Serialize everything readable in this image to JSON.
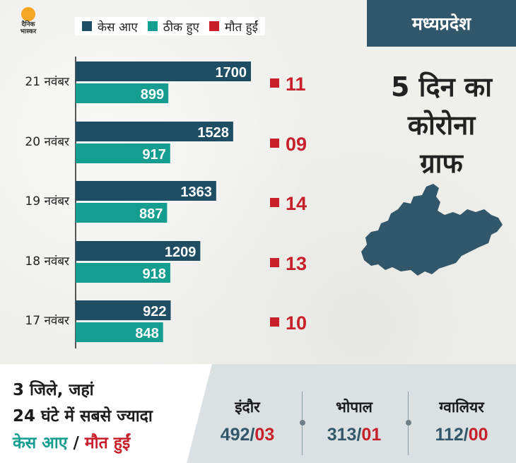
{
  "logo": {
    "line1": "दैनिक",
    "line2": "भास्कर"
  },
  "legend": [
    {
      "label": "केस आए",
      "color": "#1f4e64"
    },
    {
      "label": "ठीक हुए",
      "color": "#159e8f"
    },
    {
      "label": "मौत हुईं",
      "color": "#c8202a"
    }
  ],
  "state": "मध्यप्रदेश",
  "graph_title": [
    "5 दिन का",
    "कोरोना",
    "ग्राफ"
  ],
  "map_icon": "madhya-pradesh-map",
  "chart_data": {
    "type": "bar",
    "categories": [
      "21 नवंबर",
      "20 नवंबर",
      "19 नवंबर",
      "18 नवंबर",
      "17 नवंबर"
    ],
    "series": [
      {
        "name": "केस आए",
        "values": [
          1700,
          1528,
          1363,
          1209,
          922
        ],
        "labels": [
          "1700",
          "1528",
          "1363",
          "1209",
          "922"
        ]
      },
      {
        "name": "ठीक हुए",
        "values": [
          899,
          917,
          887,
          918,
          848
        ],
        "labels": [
          "899",
          "917",
          "887",
          "918",
          "848"
        ]
      },
      {
        "name": "मौत हुईं",
        "values": [
          11,
          9,
          14,
          13,
          10
        ],
        "labels": [
          "11",
          "09",
          "14",
          "13",
          "10"
        ]
      }
    ],
    "orientation": "horizontal",
    "xlim": [
      0,
      1800
    ],
    "grid": false,
    "legend_position": "top"
  },
  "bottom": {
    "headline_line1": "3 जिले, जहां",
    "headline_line2": "24 घंटे में सबसे ज्यादा",
    "headline_cases": "केस आए",
    "headline_sep": " / ",
    "headline_deaths": "मौत हुईं",
    "cities": [
      {
        "name": "इंदौर",
        "cases": "492",
        "deaths": "03"
      },
      {
        "name": "भोपाल",
        "cases": "313",
        "deaths": "01"
      },
      {
        "name": "ग्वालियर",
        "cases": "112",
        "deaths": "00"
      }
    ]
  }
}
